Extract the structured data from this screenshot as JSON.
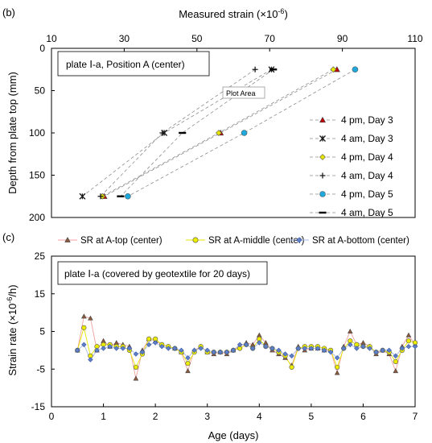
{
  "chart_data": [
    {
      "type": "scatter",
      "panel_label": "(b)",
      "xlabel_main": "Measured strain (×10",
      "xlabel_sup": "-6",
      "xlabel_end": ")",
      "ylabel": "Depth from plate top (mm)",
      "xlim": [
        10,
        110
      ],
      "ylim": [
        0,
        200
      ],
      "y_inverted": true,
      "x_axis_position": "top",
      "xticks": [
        10,
        30,
        50,
        70,
        90,
        110
      ],
      "yticks": [
        0,
        50,
        100,
        150,
        200
      ],
      "annotation": "plate Ⅰ-a, Position A (center)",
      "tooltip": "Plot Area",
      "legend_position": "right",
      "series": [
        {
          "name": "4 pm, Day 3",
          "marker": "triangle",
          "color": "#c00000",
          "x": [
            88.5,
            56.5,
            24.5
          ],
          "y": [
            25,
            100,
            175
          ]
        },
        {
          "name": "4 am, Day 3",
          "marker": "star",
          "color": "#1a1a1a",
          "x": [
            70.5,
            41,
            18.5
          ],
          "y": [
            25,
            100,
            175
          ]
        },
        {
          "name": "4 pm, Day 4",
          "marker": "diamond",
          "color": "#e6e600",
          "x": [
            87.5,
            56,
            24
          ],
          "y": [
            25,
            100,
            175
          ]
        },
        {
          "name": "4 am, Day 4",
          "marker": "plus",
          "color": "#1a1a1a",
          "x": [
            66,
            40.5,
            23.5
          ],
          "y": [
            25,
            100,
            175
          ]
        },
        {
          "name": "4 pm, Day 5",
          "marker": "circle",
          "color": "#1fa8dc",
          "x": [
            93.5,
            63,
            31
          ],
          "y": [
            25,
            100,
            175
          ]
        },
        {
          "name": "4 am, Day 5",
          "marker": "dash",
          "color": "#000000",
          "x": [
            71,
            46,
            29
          ],
          "y": [
            25,
            100,
            175
          ]
        }
      ]
    },
    {
      "type": "line",
      "panel_label": "(c)",
      "xlabel": "Age (days)",
      "ylabel_main": "Strain rate (×10",
      "ylabel_sup": "-6",
      "ylabel_end": "/h)",
      "xlim": [
        0,
        7
      ],
      "ylim": [
        -15,
        25
      ],
      "xticks": [
        0,
        1,
        2,
        3,
        4,
        5,
        6,
        7
      ],
      "yticks": [
        -15,
        -5,
        5,
        15,
        25
      ],
      "annotation": "plate Ⅰ-a (covered by geotextile for 20 days)",
      "legend_position": "top",
      "series": [
        {
          "name": "SR at A-top (center)",
          "marker": "triangle",
          "color": "#8b5a3c",
          "line_color": "#f0a0a0",
          "x": [
            0.5,
            0.625,
            0.75,
            0.875,
            1.0,
            1.125,
            1.25,
            1.375,
            1.5,
            1.625,
            1.75,
            1.875,
            2.0,
            2.125,
            2.25,
            2.375,
            2.5,
            2.625,
            2.75,
            2.875,
            3.0,
            3.125,
            3.25,
            3.375,
            3.5,
            3.625,
            3.75,
            3.875,
            4.0,
            4.125,
            4.25,
            4.375,
            4.5,
            4.625,
            4.75,
            4.875,
            5.0,
            5.125,
            5.25,
            5.375,
            5.5,
            5.625,
            5.75,
            5.875,
            6.0,
            6.125,
            6.25,
            6.375,
            6.5,
            6.625,
            6.75,
            6.875,
            7.0
          ],
          "y": [
            0,
            9,
            8.5,
            0,
            2.5,
            1,
            2,
            1.5,
            1,
            -7.5,
            0,
            3,
            2.5,
            1.5,
            1,
            0.5,
            -0.5,
            -5.5,
            0,
            1,
            -0.5,
            -1,
            -0.5,
            -1,
            0,
            1,
            2,
            1.5,
            4,
            2,
            0,
            -1,
            -2,
            -4,
            1,
            0,
            0.5,
            0.5,
            0,
            0,
            -6,
            1,
            5,
            1.5,
            2,
            1,
            -1,
            0,
            -1,
            -5.5,
            1,
            4,
            1.5
          ]
        },
        {
          "name": "SR at A-middle (center)",
          "marker": "circle",
          "color": "#ecec00",
          "line_color": "#e6e600",
          "x": [
            0.5,
            0.625,
            0.75,
            0.875,
            1.0,
            1.125,
            1.25,
            1.375,
            1.5,
            1.625,
            1.75,
            1.875,
            2.0,
            2.125,
            2.25,
            2.375,
            2.5,
            2.625,
            2.75,
            2.875,
            3.0,
            3.125,
            3.25,
            3.375,
            3.5,
            3.625,
            3.75,
            3.875,
            4.0,
            4.125,
            4.25,
            4.375,
            4.5,
            4.625,
            4.75,
            4.875,
            5.0,
            5.125,
            5.25,
            5.375,
            5.5,
            5.625,
            5.75,
            5.875,
            6.0,
            6.125,
            6.25,
            6.375,
            6.5,
            6.625,
            6.75,
            6.875,
            7.0
          ],
          "y": [
            0,
            6,
            -1.5,
            1,
            1.5,
            1.5,
            1,
            1,
            0,
            -4.5,
            -1,
            3,
            3,
            1.5,
            1,
            0.5,
            -0.5,
            -3.5,
            -0.5,
            1,
            -0.5,
            -0.5,
            -0.5,
            -0.5,
            0,
            0.5,
            1.5,
            0.5,
            3,
            1,
            0.5,
            -0.5,
            -1.5,
            -4.5,
            0.5,
            1,
            1,
            1,
            0.5,
            0,
            -4.5,
            0.5,
            2.5,
            1.5,
            1,
            1,
            -0.5,
            0,
            -0.5,
            -3,
            0,
            2.5,
            2
          ]
        },
        {
          "name": "SR at A-bottom (center)",
          "marker": "diamond",
          "color": "#5f7fc8",
          "line_color": "#a8b8e0",
          "x": [
            0.5,
            0.625,
            0.75,
            0.875,
            1.0,
            1.125,
            1.25,
            1.375,
            1.5,
            1.625,
            1.75,
            1.875,
            2.0,
            2.125,
            2.25,
            2.375,
            2.5,
            2.625,
            2.75,
            2.875,
            3.0,
            3.125,
            3.25,
            3.375,
            3.5,
            3.625,
            3.75,
            3.875,
            4.0,
            4.125,
            4.25,
            4.375,
            4.5,
            4.625,
            4.75,
            4.875,
            5.0,
            5.125,
            5.25,
            5.375,
            5.5,
            5.625,
            5.75,
            5.875,
            6.0,
            6.125,
            6.25,
            6.375,
            6.5,
            6.625,
            6.75,
            6.875,
            7.0
          ],
          "y": [
            0,
            1.5,
            -2.5,
            0,
            0.5,
            1,
            0.5,
            0.5,
            0.5,
            -1,
            -0.5,
            1.5,
            2,
            1,
            0.5,
            0.5,
            0,
            -2,
            0,
            0.5,
            0,
            -0.5,
            -0.5,
            -0.5,
            0,
            1.5,
            1.5,
            0.5,
            2,
            1,
            0.5,
            0,
            -1,
            -1.5,
            0.5,
            0.5,
            0.5,
            0.5,
            0,
            -0.5,
            -2,
            0.5,
            1.5,
            0.5,
            1,
            0.5,
            -0.5,
            0,
            0,
            -1.5,
            0.5,
            1,
            1
          ]
        }
      ]
    }
  ]
}
